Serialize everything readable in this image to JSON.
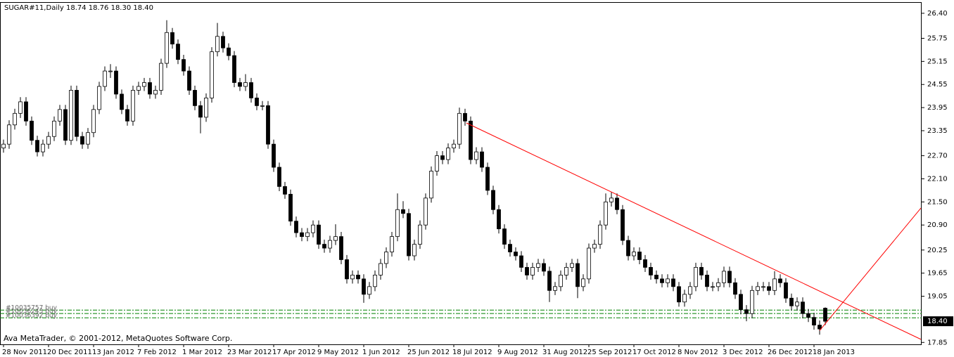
{
  "chart_data": {
    "type": "candlestick",
    "title": "SUGAR#11,Daily  18.74 18.76 18.30 18.40",
    "footer": "Ava MetaTrader, © 2001-2012, MetaQuotes Software Corp.",
    "up_color": "#ffffff",
    "down_color": "#000000",
    "wick_color": "#000000",
    "xlim": [
      -0.625,
      163.125
    ],
    "ylim": [
      17.8,
      26.69
    ],
    "xticks": [
      {
        "value": 0,
        "label": "28 Nov 2011"
      },
      {
        "value": 8,
        "label": "20 Dec 2011"
      },
      {
        "value": 16,
        "label": "13 Jan 2012"
      },
      {
        "value": 24,
        "label": "7 Feb 2012"
      },
      {
        "value": 32,
        "label": "1 Mar 2012"
      },
      {
        "value": 40,
        "label": "23 Mar 2012"
      },
      {
        "value": 48,
        "label": "17 Apr 2012"
      },
      {
        "value": 56,
        "label": "9 May 2012"
      },
      {
        "value": 64,
        "label": "1 Jun 2012"
      },
      {
        "value": 72,
        "label": "25 Jun 2012"
      },
      {
        "value": 80,
        "label": "18 Jul 2012"
      },
      {
        "value": 88,
        "label": "9 Aug 2012"
      },
      {
        "value": 96,
        "label": "31 Aug 2012"
      },
      {
        "value": 104,
        "label": "25 Sep 2012"
      },
      {
        "value": 112,
        "label": "17 Oct 2012"
      },
      {
        "value": 120,
        "label": "8 Nov 2012"
      },
      {
        "value": 128,
        "label": "3 Dec 2012"
      },
      {
        "value": 136,
        "label": "26 Dec 2012"
      },
      {
        "value": 144,
        "label": "18 Jan 2013"
      }
    ],
    "yticks": [
      {
        "value": 26.4,
        "label": "26.40"
      },
      {
        "value": 25.75,
        "label": "25.75"
      },
      {
        "value": 25.15,
        "label": "25.15"
      },
      {
        "value": 24.55,
        "label": "24.55"
      },
      {
        "value": 23.95,
        "label": "23.95"
      },
      {
        "value": 23.35,
        "label": "23.35"
      },
      {
        "value": 22.7,
        "label": "22.70"
      },
      {
        "value": 22.1,
        "label": "22.10"
      },
      {
        "value": 21.5,
        "label": "21.50"
      },
      {
        "value": 20.9,
        "label": "20.90"
      },
      {
        "value": 20.25,
        "label": "20.25"
      },
      {
        "value": 19.65,
        "label": "19.65"
      },
      {
        "value": 19.05,
        "label": "19.05"
      },
      {
        "value": 17.85,
        "label": "17.85"
      }
    ],
    "price_label": {
      "value": 18.4,
      "label": "18.40"
    },
    "ohlc": [
      [
        22.9,
        23.12,
        22.78,
        23.0
      ],
      [
        23.0,
        23.62,
        22.88,
        23.5
      ],
      [
        23.5,
        23.92,
        23.38,
        23.8
      ],
      [
        23.8,
        24.22,
        23.68,
        24.1
      ],
      [
        24.1,
        24.22,
        23.48,
        23.6
      ],
      [
        23.6,
        23.72,
        22.98,
        23.1
      ],
      [
        23.1,
        23.22,
        22.68,
        22.8
      ],
      [
        22.8,
        23.12,
        22.68,
        23.0
      ],
      [
        23.0,
        23.32,
        22.88,
        23.2
      ],
      [
        23.2,
        23.72,
        23.08,
        23.6
      ],
      [
        23.6,
        24.02,
        23.48,
        23.9
      ],
      [
        23.9,
        24.02,
        22.98,
        23.1
      ],
      [
        23.1,
        24.52,
        22.98,
        24.4
      ],
      [
        24.4,
        24.52,
        23.08,
        23.2
      ],
      [
        23.2,
        23.32,
        22.88,
        23.0
      ],
      [
        23.0,
        23.42,
        22.88,
        23.3
      ],
      [
        23.3,
        24.02,
        23.18,
        23.9
      ],
      [
        23.9,
        24.62,
        23.78,
        24.5
      ],
      [
        24.5,
        25.02,
        24.38,
        24.9
      ],
      [
        24.9,
        25.08,
        24.72,
        24.9
      ],
      [
        24.9,
        25.02,
        24.18,
        24.3
      ],
      [
        24.3,
        24.42,
        23.78,
        23.9
      ],
      [
        23.9,
        24.02,
        23.48,
        23.6
      ],
      [
        23.6,
        24.52,
        23.48,
        24.4
      ],
      [
        24.4,
        24.62,
        24.28,
        24.5
      ],
      [
        24.5,
        24.72,
        24.38,
        24.6
      ],
      [
        24.6,
        24.72,
        24.18,
        24.3
      ],
      [
        24.3,
        24.52,
        24.18,
        24.4
      ],
      [
        24.4,
        25.22,
        24.28,
        25.1
      ],
      [
        25.1,
        26.22,
        24.98,
        25.9
      ],
      [
        25.9,
        26.02,
        25.48,
        25.6
      ],
      [
        25.6,
        25.72,
        25.08,
        25.2
      ],
      [
        25.2,
        25.32,
        24.78,
        24.9
      ],
      [
        24.9,
        25.02,
        24.28,
        24.4
      ],
      [
        24.4,
        24.52,
        23.88,
        24.0
      ],
      [
        24.0,
        24.12,
        23.28,
        23.7
      ],
      [
        23.7,
        24.32,
        23.58,
        24.2
      ],
      [
        24.2,
        25.52,
        24.08,
        25.4
      ],
      [
        25.4,
        26.15,
        25.28,
        25.8
      ],
      [
        25.8,
        25.92,
        25.38,
        25.5
      ],
      [
        25.5,
        25.62,
        25.18,
        25.3
      ],
      [
        25.3,
        25.42,
        24.48,
        24.6
      ],
      [
        24.6,
        24.72,
        24.38,
        24.5
      ],
      [
        24.5,
        24.82,
        24.38,
        24.6
      ],
      [
        24.6,
        24.72,
        24.08,
        24.2
      ],
      [
        24.2,
        24.32,
        23.88,
        24.0
      ],
      [
        24.0,
        24.12,
        23.88,
        24.0
      ],
      [
        24.0,
        24.12,
        22.88,
        23.0
      ],
      [
        23.0,
        23.12,
        22.28,
        22.4
      ],
      [
        22.4,
        22.52,
        21.78,
        21.9
      ],
      [
        21.9,
        22.02,
        21.58,
        21.7
      ],
      [
        21.7,
        21.82,
        20.88,
        21.0
      ],
      [
        21.0,
        21.12,
        20.58,
        20.7
      ],
      [
        20.7,
        20.82,
        20.48,
        20.6
      ],
      [
        20.6,
        20.82,
        20.48,
        20.7
      ],
      [
        20.7,
        21.02,
        20.58,
        20.9
      ],
      [
        20.9,
        21.02,
        20.28,
        20.4
      ],
      [
        20.4,
        20.52,
        20.18,
        20.3
      ],
      [
        20.3,
        20.62,
        20.18,
        20.5
      ],
      [
        20.5,
        20.92,
        20.38,
        20.6
      ],
      [
        20.6,
        20.72,
        19.88,
        20.0
      ],
      [
        20.0,
        20.12,
        19.38,
        19.5
      ],
      [
        19.5,
        19.72,
        19.38,
        19.6
      ],
      [
        19.6,
        19.72,
        19.38,
        19.5
      ],
      [
        19.5,
        19.62,
        18.88,
        19.1
      ],
      [
        19.1,
        19.42,
        18.98,
        19.3
      ],
      [
        19.3,
        19.72,
        19.18,
        19.6
      ],
      [
        19.6,
        20.02,
        19.48,
        19.9
      ],
      [
        19.9,
        20.32,
        19.78,
        20.2
      ],
      [
        20.2,
        20.72,
        20.08,
        20.6
      ],
      [
        20.6,
        21.72,
        20.48,
        21.3
      ],
      [
        21.3,
        21.52,
        21.08,
        21.2
      ],
      [
        21.2,
        21.32,
        19.98,
        20.1
      ],
      [
        20.1,
        20.52,
        19.98,
        20.4
      ],
      [
        20.4,
        21.02,
        20.28,
        20.9
      ],
      [
        20.9,
        21.72,
        20.78,
        21.6
      ],
      [
        21.6,
        22.42,
        21.48,
        22.3
      ],
      [
        22.3,
        22.82,
        22.18,
        22.7
      ],
      [
        22.7,
        22.82,
        22.48,
        22.6
      ],
      [
        22.6,
        23.02,
        22.48,
        22.9
      ],
      [
        22.9,
        23.12,
        22.78,
        23.0
      ],
      [
        23.0,
        23.95,
        22.88,
        23.8
      ],
      [
        23.8,
        23.92,
        23.48,
        23.6
      ],
      [
        23.6,
        23.72,
        22.48,
        22.6
      ],
      [
        22.6,
        22.92,
        22.48,
        22.8
      ],
      [
        22.8,
        22.92,
        22.28,
        22.4
      ],
      [
        22.4,
        22.52,
        21.68,
        21.8
      ],
      [
        21.8,
        21.92,
        21.18,
        21.3
      ],
      [
        21.3,
        21.42,
        20.68,
        20.8
      ],
      [
        20.8,
        20.92,
        20.28,
        20.4
      ],
      [
        20.4,
        20.52,
        20.08,
        20.2
      ],
      [
        20.2,
        20.32,
        19.98,
        20.1
      ],
      [
        20.1,
        20.22,
        19.68,
        19.8
      ],
      [
        19.8,
        19.92,
        19.48,
        19.6
      ],
      [
        19.6,
        19.92,
        19.48,
        19.8
      ],
      [
        19.8,
        20.02,
        19.68,
        19.9
      ],
      [
        19.9,
        20.02,
        19.58,
        19.7
      ],
      [
        19.7,
        19.82,
        18.9,
        19.2
      ],
      [
        19.2,
        19.42,
        19.08,
        19.3
      ],
      [
        19.3,
        19.72,
        19.18,
        19.6
      ],
      [
        19.6,
        19.92,
        19.48,
        19.8
      ],
      [
        19.8,
        20.02,
        19.68,
        19.9
      ],
      [
        19.9,
        20.02,
        19.0,
        19.3
      ],
      [
        19.3,
        19.62,
        19.18,
        19.5
      ],
      [
        19.5,
        20.42,
        19.38,
        20.3
      ],
      [
        20.3,
        20.52,
        20.18,
        20.4
      ],
      [
        20.4,
        21.02,
        20.28,
        20.9
      ],
      [
        20.9,
        21.72,
        20.78,
        21.5
      ],
      [
        21.5,
        21.75,
        21.38,
        21.6
      ],
      [
        21.6,
        21.72,
        21.18,
        21.3
      ],
      [
        21.3,
        21.42,
        20.38,
        20.5
      ],
      [
        20.5,
        20.62,
        19.98,
        20.1
      ],
      [
        20.1,
        20.32,
        19.98,
        20.2
      ],
      [
        20.2,
        20.32,
        19.88,
        20.0
      ],
      [
        20.0,
        20.12,
        19.68,
        19.8
      ],
      [
        19.8,
        19.92,
        19.48,
        19.6
      ],
      [
        19.6,
        19.72,
        19.38,
        19.5
      ],
      [
        19.5,
        19.62,
        19.28,
        19.4
      ],
      [
        19.4,
        19.62,
        19.28,
        19.5
      ],
      [
        19.5,
        19.62,
        19.18,
        19.3
      ],
      [
        19.3,
        19.42,
        18.78,
        18.9
      ],
      [
        18.9,
        19.22,
        18.78,
        19.1
      ],
      [
        19.1,
        19.42,
        18.98,
        19.3
      ],
      [
        19.3,
        19.92,
        19.18,
        19.8
      ],
      [
        19.8,
        19.92,
        19.48,
        19.6
      ],
      [
        19.6,
        19.72,
        19.18,
        19.3
      ],
      [
        19.3,
        19.42,
        19.18,
        19.3
      ],
      [
        19.3,
        19.52,
        19.18,
        19.4
      ],
      [
        19.4,
        19.82,
        19.28,
        19.7
      ],
      [
        19.7,
        19.82,
        19.28,
        19.4
      ],
      [
        19.4,
        19.52,
        18.98,
        19.1
      ],
      [
        19.1,
        19.22,
        18.58,
        18.7
      ],
      [
        18.7,
        18.82,
        18.4,
        18.6
      ],
      [
        18.6,
        19.32,
        18.48,
        19.2
      ],
      [
        19.2,
        19.42,
        19.08,
        19.3
      ],
      [
        19.3,
        19.42,
        19.18,
        19.3
      ],
      [
        19.3,
        19.42,
        19.08,
        19.2
      ],
      [
        19.2,
        19.7,
        19.08,
        19.5
      ],
      [
        19.5,
        19.62,
        19.28,
        19.4
      ],
      [
        19.4,
        19.52,
        18.88,
        19.0
      ],
      [
        19.0,
        19.12,
        18.68,
        18.8
      ],
      [
        18.8,
        19.02,
        18.68,
        18.9
      ],
      [
        18.9,
        19.02,
        18.48,
        18.6
      ],
      [
        18.6,
        18.72,
        18.38,
        18.5
      ],
      [
        18.5,
        18.62,
        18.18,
        18.3
      ],
      [
        18.3,
        18.42,
        18.05,
        18.2
      ],
      [
        18.74,
        18.76,
        18.3,
        18.4
      ]
    ],
    "trendlines": [
      {
        "color": "#ff0000",
        "x": [
          82.25,
          163
        ],
        "y": [
          23.55,
          17.93
        ]
      },
      {
        "color": "#ff0000",
        "x": [
          145,
          163
        ],
        "y": [
          18.16,
          21.34
        ]
      }
    ],
    "orders": [
      {
        "label": "#10035757 buy",
        "price": 18.69,
        "color": "#008000"
      },
      {
        "label": "#10036243 buy",
        "price": 18.6,
        "color": "#008000"
      },
      {
        "label": "#10036392 buy",
        "price": 18.49,
        "color": "#008000"
      }
    ]
  }
}
